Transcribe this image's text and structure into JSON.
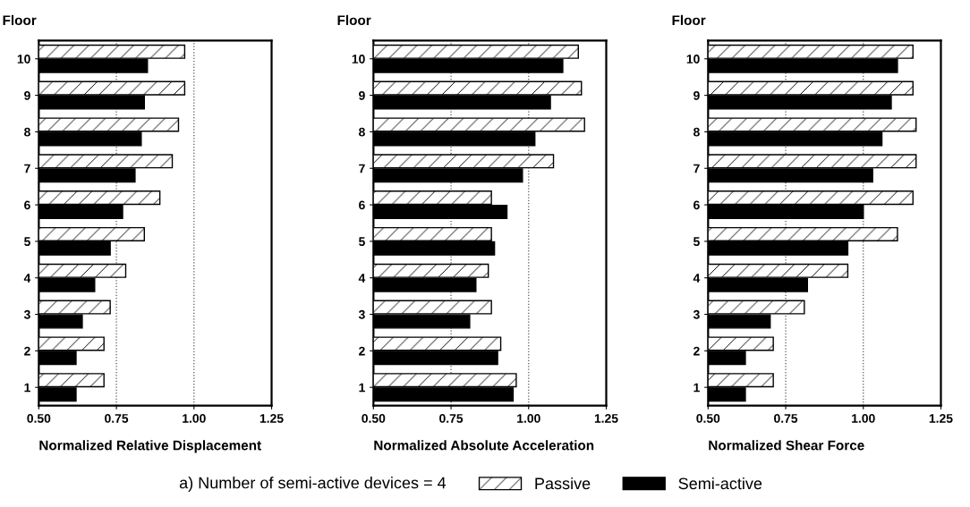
{
  "chart_data": [
    {
      "type": "bar",
      "orientation": "horizontal",
      "xlabel": "Normalized Relative Displacement",
      "ylabel": "Floor",
      "categories": [
        "10",
        "9",
        "8",
        "7",
        "6",
        "5",
        "4",
        "3",
        "2",
        "1"
      ],
      "xlim": [
        0.5,
        1.25
      ],
      "xticks": [
        {
          "value": 0.5,
          "label": "0.50"
        },
        {
          "value": 0.75,
          "label": "0.75"
        },
        {
          "value": 1.0,
          "label": "1.00"
        },
        {
          "value": 1.25,
          "label": "1.25"
        }
      ],
      "grid": "x",
      "legend": "bottom",
      "annotations": [
        "a) Number of semi-active devices = 4"
      ],
      "series": [
        {
          "name": "Passive",
          "color": "#ffffff",
          "values": [
            0.97,
            0.97,
            0.95,
            0.93,
            0.89,
            0.84,
            0.78,
            0.73,
            0.71,
            0.71
          ]
        },
        {
          "name": "Semi-active",
          "color": "#000000",
          "values": [
            0.85,
            0.84,
            0.83,
            0.81,
            0.77,
            0.73,
            0.68,
            0.64,
            0.62,
            0.62
          ]
        }
      ]
    },
    {
      "type": "bar",
      "orientation": "horizontal",
      "xlabel": "Normalized Absolute Acceleration",
      "ylabel": "Floor",
      "categories": [
        "10",
        "9",
        "8",
        "7",
        "6",
        "5",
        "4",
        "3",
        "2",
        "1"
      ],
      "xlim": [
        0.5,
        1.25
      ],
      "xticks": [
        {
          "value": 0.5,
          "label": "0.50"
        },
        {
          "value": 0.75,
          "label": "0.75"
        },
        {
          "value": 1.0,
          "label": "1.00"
        },
        {
          "value": 1.25,
          "label": "1.25"
        }
      ],
      "grid": "x",
      "series": [
        {
          "color": "#ffffff",
          "values": [
            1.16,
            1.17,
            1.18,
            1.08,
            0.88,
            0.88,
            0.87,
            0.88,
            0.91,
            0.96
          ]
        },
        {
          "color": "#000000",
          "values": [
            1.11,
            1.07,
            1.02,
            0.98,
            0.93,
            0.89,
            0.83,
            0.81,
            0.9,
            0.95
          ]
        }
      ]
    },
    {
      "type": "bar",
      "orientation": "horizontal",
      "xlabel": "Normalized Shear Force",
      "ylabel": "Floor",
      "categories": [
        "10",
        "9",
        "8",
        "7",
        "6",
        "5",
        "4",
        "3",
        "2",
        "1"
      ],
      "xlim": [
        0.5,
        1.25
      ],
      "xticks": [
        {
          "value": 0.5,
          "label": "0.50"
        },
        {
          "value": 0.75,
          "label": "0.75"
        },
        {
          "value": 1.0,
          "label": "1.00"
        },
        {
          "value": 1.25,
          "label": "1.25"
        }
      ],
      "grid": "x",
      "series": [
        {
          "color": "#ffffff",
          "values": [
            1.16,
            1.16,
            1.17,
            1.17,
            1.16,
            1.11,
            0.95,
            0.81,
            0.71,
            0.71
          ]
        },
        {
          "color": "#000000",
          "values": [
            1.11,
            1.09,
            1.06,
            1.03,
            1.0,
            0.95,
            0.82,
            0.7,
            0.62,
            0.62
          ]
        }
      ]
    }
  ]
}
